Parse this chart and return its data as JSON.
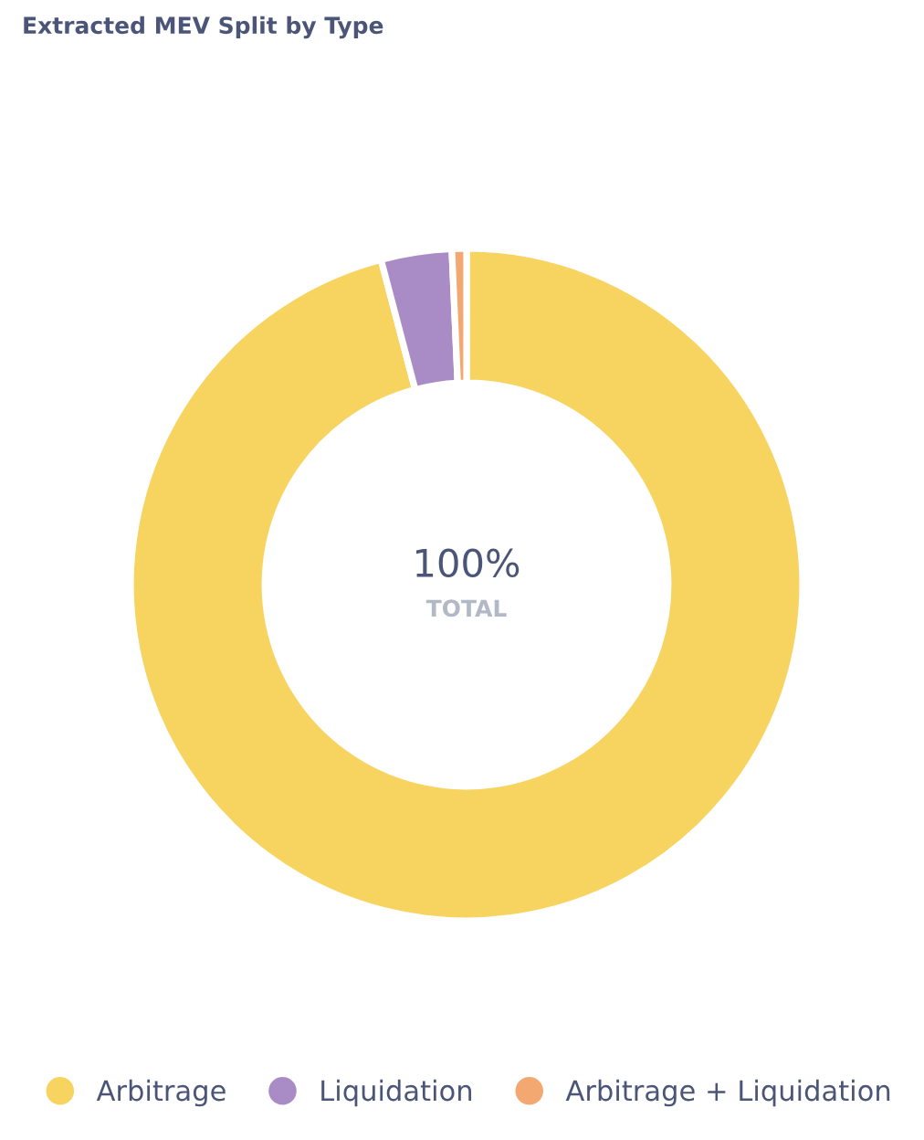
{
  "chart_data": {
    "type": "donut",
    "title": "Extracted MEV Split by Type",
    "categories": [
      "Arbitrage",
      "Liquidation",
      "Arbitrage + Liquidation"
    ],
    "values": [
      95.9,
      3.4,
      0.7
    ],
    "colors": [
      "#f7d35f",
      "#a98bc6",
      "#f4a871"
    ],
    "legend": "bottom",
    "annotations": [
      "100%",
      "TOTAL"
    ]
  }
}
